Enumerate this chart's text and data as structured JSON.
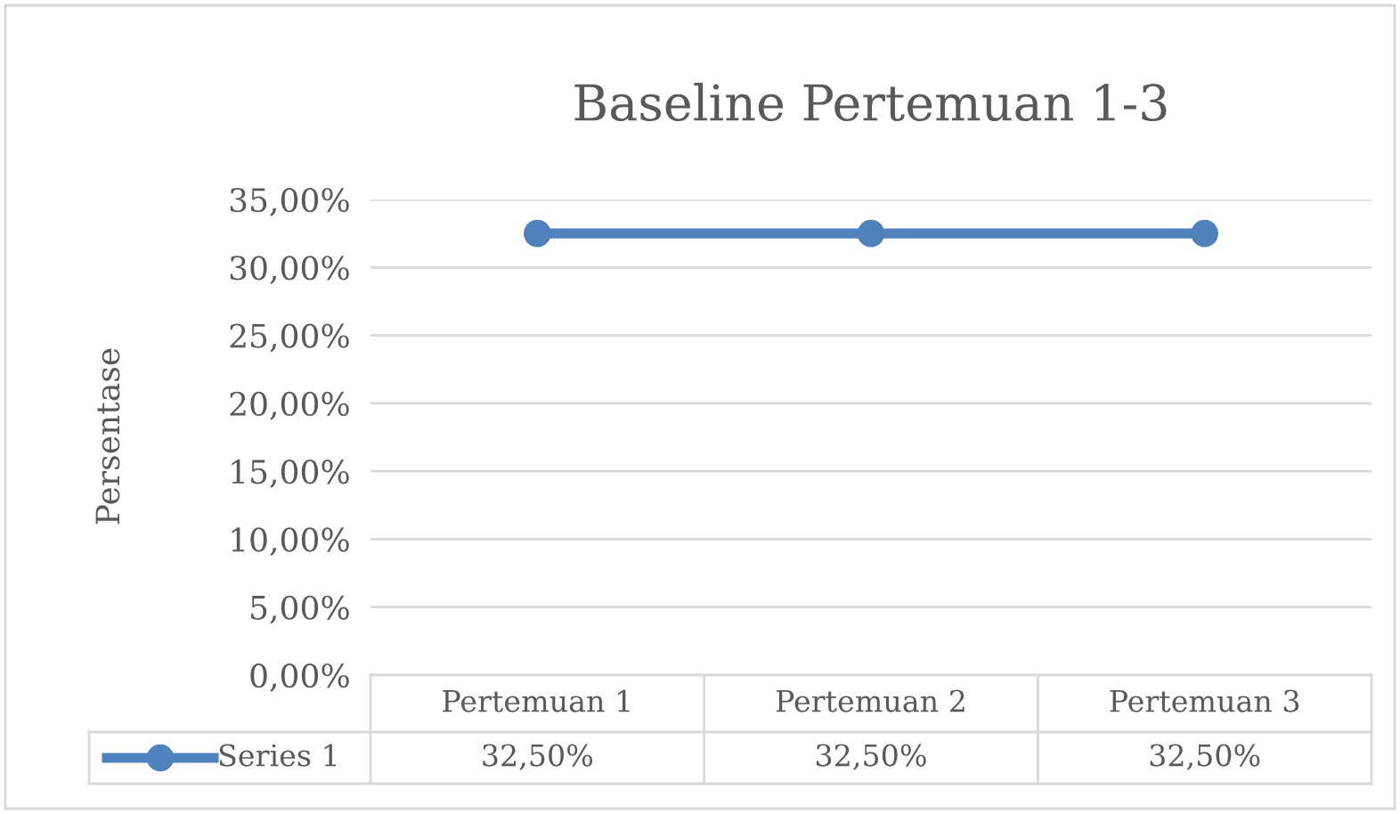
{
  "chart_data": {
    "type": "line",
    "title": "Baseline Pertemuan 1-3",
    "ylabel": "Persentase",
    "categories": [
      "Pertemuan 1",
      "Pertemuan 2",
      "Pertemuan 3"
    ],
    "series": [
      {
        "name": "Series 1",
        "color": "#4f81bd",
        "values": [
          32.5,
          32.5,
          32.5
        ],
        "value_labels": [
          "32,50%",
          "32,50%",
          "32,50%"
        ]
      }
    ],
    "ylim": [
      0,
      35
    ],
    "yticks": [
      {
        "value": 0,
        "label": "0,00%"
      },
      {
        "value": 5,
        "label": "5,00%"
      },
      {
        "value": 10,
        "label": "10,00%"
      },
      {
        "value": 15,
        "label": "15,00%"
      },
      {
        "value": 20,
        "label": "20,00%"
      },
      {
        "value": 25,
        "label": "25,00%"
      },
      {
        "value": 30,
        "label": "30,00%"
      },
      {
        "value": 35,
        "label": "35,00%"
      }
    ],
    "grid": "y",
    "legend": "bottom",
    "marker": "circle",
    "line_style": "solid"
  }
}
